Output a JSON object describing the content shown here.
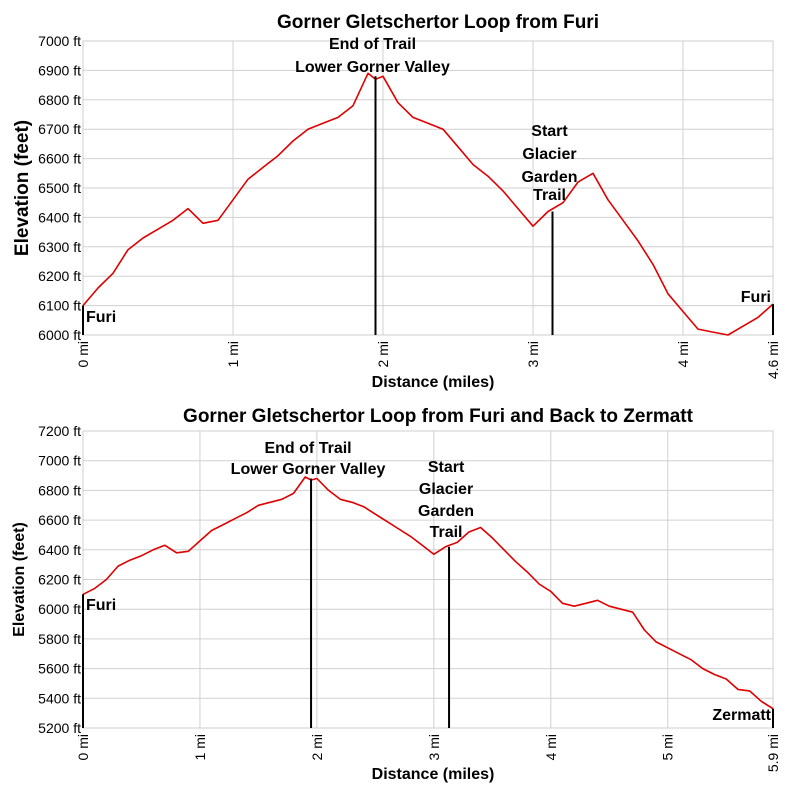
{
  "chart_data": [
    {
      "type": "line",
      "title": "Gorner Gletschertor Loop from Furi",
      "xlabel": "Distance (miles)",
      "ylabel": "Elevation (feet)",
      "xlim": [
        0,
        4.6
      ],
      "ylim": [
        6000,
        7000
      ],
      "x_ticks": [
        0,
        1,
        2,
        3,
        4,
        4.6
      ],
      "x_tick_labels": [
        "0 mi",
        "1 mi",
        "2 mi",
        "3 mi",
        "4 mi",
        "4.6 mi"
      ],
      "y_ticks": [
        6000,
        6100,
        6200,
        6300,
        6400,
        6500,
        6600,
        6700,
        6800,
        6900,
        7000
      ],
      "y_tick_labels": [
        "6000 ft",
        "6100 ft",
        "6200 ft",
        "6300 ft",
        "6400 ft",
        "6500 ft",
        "6600 ft",
        "6700 ft",
        "6800 ft",
        "6900 ft",
        "7000 ft"
      ],
      "grid": true,
      "series": [
        {
          "color": "#e00000",
          "x": [
            0,
            0.1,
            0.2,
            0.3,
            0.4,
            0.5,
            0.6,
            0.7,
            0.8,
            0.9,
            1.0,
            1.1,
            1.2,
            1.3,
            1.4,
            1.5,
            1.6,
            1.7,
            1.8,
            1.9,
            1.95,
            2.0,
            2.1,
            2.2,
            2.3,
            2.4,
            2.5,
            2.6,
            2.7,
            2.8,
            2.9,
            3.0,
            3.1,
            3.2,
            3.3,
            3.4,
            3.5,
            3.6,
            3.7,
            3.8,
            3.9,
            4.0,
            4.1,
            4.2,
            4.3,
            4.4,
            4.5,
            4.6
          ],
          "y": [
            6100,
            6160,
            6210,
            6290,
            6330,
            6360,
            6390,
            6430,
            6380,
            6390,
            6460,
            6530,
            6570,
            6610,
            6660,
            6700,
            6720,
            6740,
            6780,
            6890,
            6870,
            6880,
            6790,
            6740,
            6720,
            6700,
            6640,
            6580,
            6540,
            6490,
            6430,
            6370,
            6420,
            6450,
            6520,
            6550,
            6460,
            6390,
            6320,
            6240,
            6140,
            6080,
            6020,
            6010,
            6000,
            6030,
            6060,
            6105
          ]
        }
      ],
      "annotations": [
        {
          "x": 0,
          "y": 6100,
          "label": [
            "Furi"
          ]
        },
        {
          "x": 1.95,
          "y": 6880,
          "label": [
            "End of Trail",
            "Lower Gorner Valley"
          ]
        },
        {
          "x": 3.13,
          "y": 6420,
          "label": [
            "Start",
            "Glacier",
            "Garden",
            "Trail"
          ]
        },
        {
          "x": 4.6,
          "y": 6105,
          "label": [
            "Furi"
          ]
        }
      ]
    },
    {
      "type": "line",
      "title": "Gorner Gletschertor Loop from Furi and Back to Zermatt",
      "xlabel": "Distance (miles)",
      "ylabel": "Elevation (feet)",
      "xlim": [
        0,
        5.9
      ],
      "ylim": [
        5200,
        7200
      ],
      "x_ticks": [
        0,
        1,
        2,
        3,
        4,
        5,
        5.9
      ],
      "x_tick_labels": [
        "0 mi",
        "1 mi",
        "2 mi",
        "3 mi",
        "4 mi",
        "5 mi",
        "5.9 mi"
      ],
      "y_ticks": [
        5200,
        5400,
        5600,
        5800,
        6000,
        6200,
        6400,
        6600,
        6800,
        7000,
        7200
      ],
      "y_tick_labels": [
        "5200 ft",
        "5400 ft",
        "5600 ft",
        "5800 ft",
        "6000 ft",
        "6200 ft",
        "6400 ft",
        "6600 ft",
        "6800 ft",
        "7000 ft",
        "7200 ft"
      ],
      "grid": true,
      "series": [
        {
          "color": "#e00000",
          "x": [
            0,
            0.1,
            0.2,
            0.3,
            0.4,
            0.5,
            0.6,
            0.7,
            0.8,
            0.9,
            1.0,
            1.1,
            1.2,
            1.3,
            1.4,
            1.5,
            1.6,
            1.7,
            1.8,
            1.9,
            1.95,
            2.0,
            2.1,
            2.2,
            2.3,
            2.4,
            2.5,
            2.6,
            2.7,
            2.8,
            2.9,
            3.0,
            3.1,
            3.2,
            3.3,
            3.4,
            3.5,
            3.6,
            3.7,
            3.8,
            3.9,
            4.0,
            4.1,
            4.2,
            4.3,
            4.4,
            4.5,
            4.6,
            4.7,
            4.8,
            4.9,
            5.0,
            5.1,
            5.2,
            5.3,
            5.4,
            5.5,
            5.6,
            5.7,
            5.8,
            5.9
          ],
          "y": [
            6100,
            6140,
            6200,
            6290,
            6330,
            6360,
            6400,
            6430,
            6380,
            6390,
            6460,
            6530,
            6570,
            6610,
            6650,
            6700,
            6720,
            6740,
            6780,
            6890,
            6870,
            6880,
            6800,
            6740,
            6720,
            6690,
            6640,
            6590,
            6540,
            6490,
            6430,
            6370,
            6420,
            6450,
            6520,
            6550,
            6480,
            6400,
            6320,
            6250,
            6170,
            6120,
            6040,
            6020,
            6040,
            6060,
            6020,
            6000,
            5980,
            5860,
            5780,
            5740,
            5700,
            5660,
            5600,
            5560,
            5530,
            5460,
            5450,
            5380,
            5330
          ]
        }
      ],
      "annotations": [
        {
          "x": 0,
          "y": 6100,
          "label": [
            "Furi"
          ]
        },
        {
          "x": 1.95,
          "y": 6880,
          "label": [
            "End of Trail",
            "Lower Gorner Valley"
          ]
        },
        {
          "x": 3.13,
          "y": 6420,
          "label": [
            "Start",
            "Glacier",
            "Garden",
            "Trail"
          ]
        },
        {
          "x": 5.9,
          "y": 5330,
          "label": [
            "Zermatt"
          ]
        }
      ]
    }
  ]
}
